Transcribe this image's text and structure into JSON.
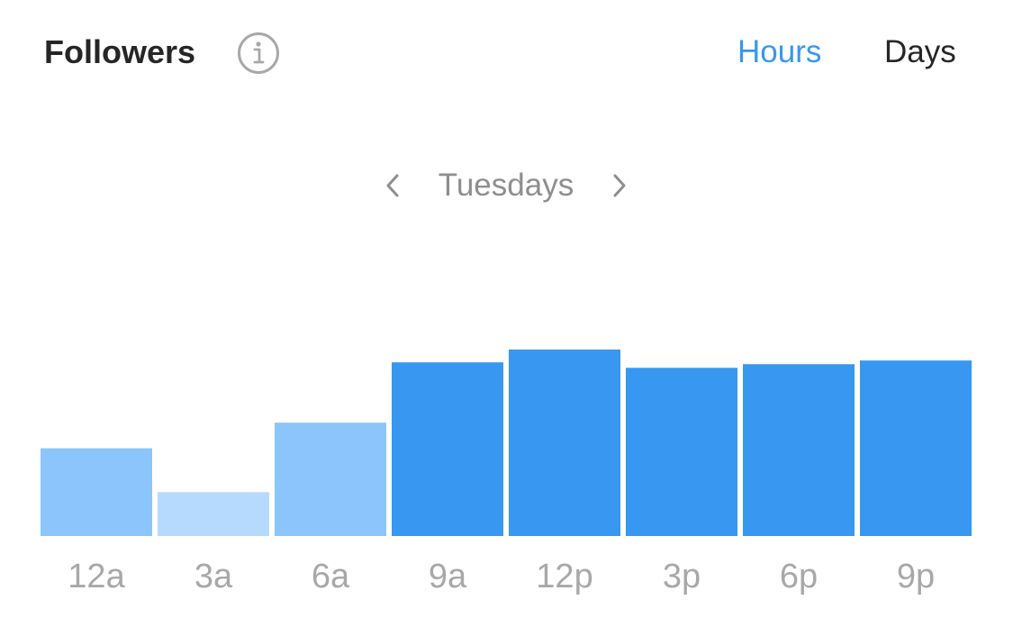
{
  "header": {
    "title": "Followers",
    "info_icon": "info-circle-icon",
    "tabs": [
      {
        "label": "Hours",
        "active": true
      },
      {
        "label": "Days",
        "active": false
      }
    ]
  },
  "period": {
    "label": "Tuesdays",
    "prev_icon": "chevron-left-icon",
    "next_icon": "chevron-right-icon"
  },
  "colors": {
    "title": "#262626",
    "active_tab": "#3897f0",
    "inactive_tab": "#262626",
    "muted_text": "#8e8e8e",
    "icon_gray": "#a8a8a8",
    "bar_high": "#3897f0",
    "bar_mid": "#8cc5fb",
    "bar_low": "#b6dafd"
  },
  "chart_data": {
    "type": "bar",
    "categories": [
      "12a",
      "3a",
      "6a",
      "9a",
      "12p",
      "3p",
      "6p",
      "9p"
    ],
    "values": [
      48,
      24,
      62,
      95,
      102,
      92,
      94,
      96
    ],
    "intensity": [
      "mid",
      "low",
      "mid",
      "high",
      "high",
      "high",
      "high",
      "high"
    ],
    "title": "",
    "xlabel": "",
    "ylabel": "",
    "ylim": [
      0,
      102
    ],
    "grid": false,
    "legend": "none"
  }
}
